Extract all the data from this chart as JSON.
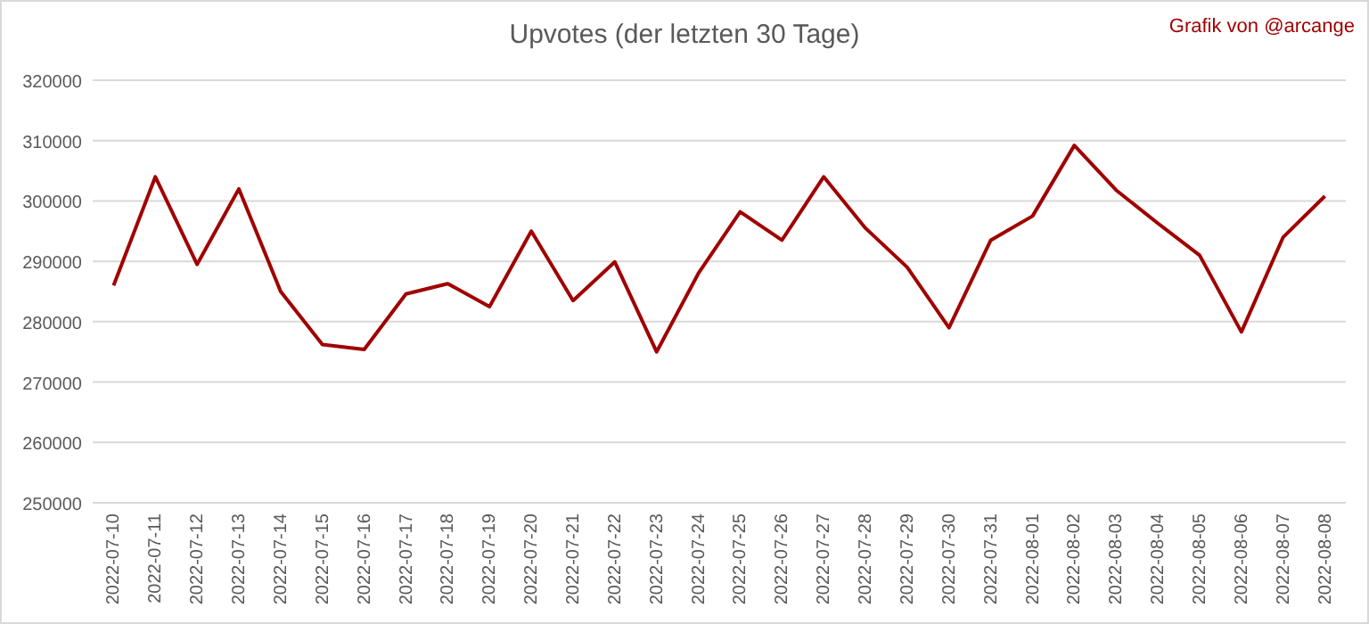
{
  "chart_data": {
    "type": "line",
    "title": "Upvotes (der letzten 30 Tage)",
    "annotations": [
      "Grafik von @arcange"
    ],
    "categories": [
      "2022-07-10",
      "2022-07-11",
      "2022-07-12",
      "2022-07-13",
      "2022-07-14",
      "2022-07-15",
      "2022-07-16",
      "2022-07-17",
      "2022-07-18",
      "2022-07-19",
      "2022-07-20",
      "2022-07-21",
      "2022-07-22",
      "2022-07-23",
      "2022-07-24",
      "2022-07-25",
      "2022-07-26",
      "2022-07-27",
      "2022-07-28",
      "2022-07-29",
      "2022-07-30",
      "2022-07-31",
      "2022-08-01",
      "2022-08-02",
      "2022-08-03",
      "2022-08-04",
      "2022-08-05",
      "2022-08-06",
      "2022-08-07",
      "2022-08-08"
    ],
    "series": [
      {
        "color": "#a00000",
        "values": [
          286000,
          304000,
          289500,
          302000,
          285000,
          276200,
          275400,
          284600,
          286300,
          282500,
          295000,
          283500,
          289900,
          275000,
          288000,
          298200,
          293500,
          304000,
          295500,
          289000,
          279000,
          293500,
          297500,
          309200,
          301800,
          296300,
          291000,
          278300,
          294000,
          300800
        ]
      }
    ],
    "ylim": [
      250000,
      320000
    ],
    "yticks": [
      250000,
      260000,
      270000,
      280000,
      290000,
      300000,
      310000,
      320000
    ],
    "grid": "y",
    "marker": "none",
    "line_style": "solid"
  }
}
